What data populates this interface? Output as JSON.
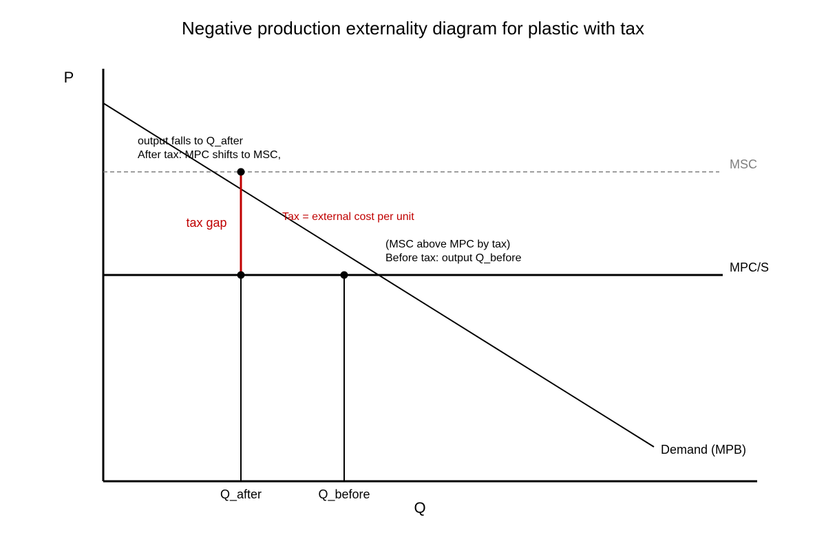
{
  "title": "Negative production externality diagram for plastic with tax",
  "axes": {
    "y_label": "P",
    "x_label": "Q"
  },
  "curves": {
    "msc_label": "MSC",
    "mpc_label": "MPC/S",
    "demand_label": "Demand (MPB)"
  },
  "quantities": {
    "q_after_label": "Q_after",
    "q_before_label": "Q_before"
  },
  "annotations": {
    "after_tax_line1": "output falls to Q_after",
    "after_tax_line2": "After tax: MPC shifts to MSC,",
    "tax_gap_label": "tax gap",
    "tax_note": "Tax = external cost per unit",
    "before_tax_line1": "(MSC above MPC by tax)",
    "before_tax_line2": "Before tax: output Q_before"
  },
  "colors": {
    "axis": "#000000",
    "msc": "#7f7f7f",
    "tax": "#c00000",
    "text": "#000000"
  }
}
